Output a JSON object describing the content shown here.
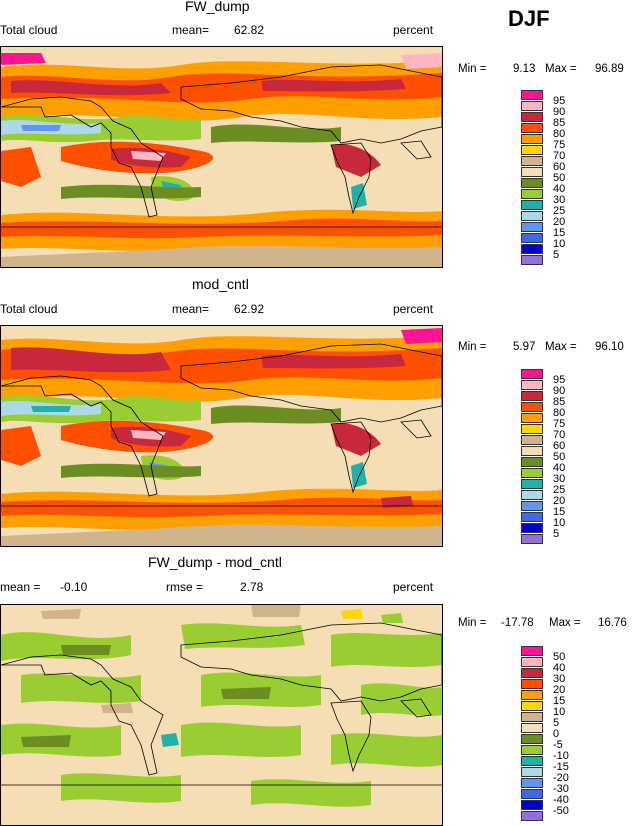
{
  "season": "DJF",
  "panels": [
    {
      "title": "FW_dump",
      "left_label": "Total cloud",
      "stat_label": "mean=",
      "stat_value": "62.82",
      "units": "percent",
      "min_label": "Min =",
      "min": "9.13",
      "max_label": "Max =",
      "max": "96.89",
      "levels": [
        "95",
        "90",
        "85",
        "80",
        "75",
        "70",
        "60",
        "50",
        "40",
        "30",
        "25",
        "20",
        "15",
        "10",
        "5"
      ],
      "colors": [
        "#ff1493",
        "#ffb6c1",
        "#c8283c",
        "#ff5000",
        "#ffa000",
        "#ffd700",
        "#d2b48c",
        "#f5deb3",
        "#6b8e23",
        "#9acd32",
        "#20b2aa",
        "#add8e6",
        "#6495ed",
        "#4169e1",
        "#0000cd",
        "#9370db"
      ]
    },
    {
      "title": "mod_cntl",
      "left_label": "Total cloud",
      "stat_label": "mean=",
      "stat_value": "62.92",
      "units": "percent",
      "min_label": "Min =",
      "min": "5.97",
      "max_label": "Max =",
      "max": "96.10",
      "levels": [
        "95",
        "90",
        "85",
        "80",
        "75",
        "70",
        "60",
        "50",
        "40",
        "30",
        "25",
        "20",
        "15",
        "10",
        "5"
      ],
      "colors": [
        "#ff1493",
        "#ffb6c1",
        "#c8283c",
        "#ff5000",
        "#ffa000",
        "#ffd700",
        "#d2b48c",
        "#f5deb3",
        "#6b8e23",
        "#9acd32",
        "#20b2aa",
        "#add8e6",
        "#6495ed",
        "#4169e1",
        "#0000cd",
        "#9370db"
      ]
    },
    {
      "title": "FW_dump - mod_cntl",
      "left_label": "mean =",
      "left_value": "-0.10",
      "stat_label": "rmse =",
      "stat_value": "2.78",
      "units": "percent",
      "min_label": "Min =",
      "min": "-17.78",
      "max_label": "Max =",
      "max": "16.76",
      "levels": [
        "50",
        "40",
        "30",
        "20",
        "15",
        "10",
        "5",
        "0",
        "-5",
        "-10",
        "-15",
        "-20",
        "-30",
        "-40",
        "-50"
      ],
      "colors": [
        "#ff1493",
        "#ffb6c1",
        "#c8283c",
        "#ff5000",
        "#ffa000",
        "#ffd700",
        "#d2b48c",
        "#f5deb3",
        "#6b8e23",
        "#9acd32",
        "#20b2aa",
        "#add8e6",
        "#6495ed",
        "#4169e1",
        "#0000cd",
        "#9370db"
      ]
    }
  ]
}
